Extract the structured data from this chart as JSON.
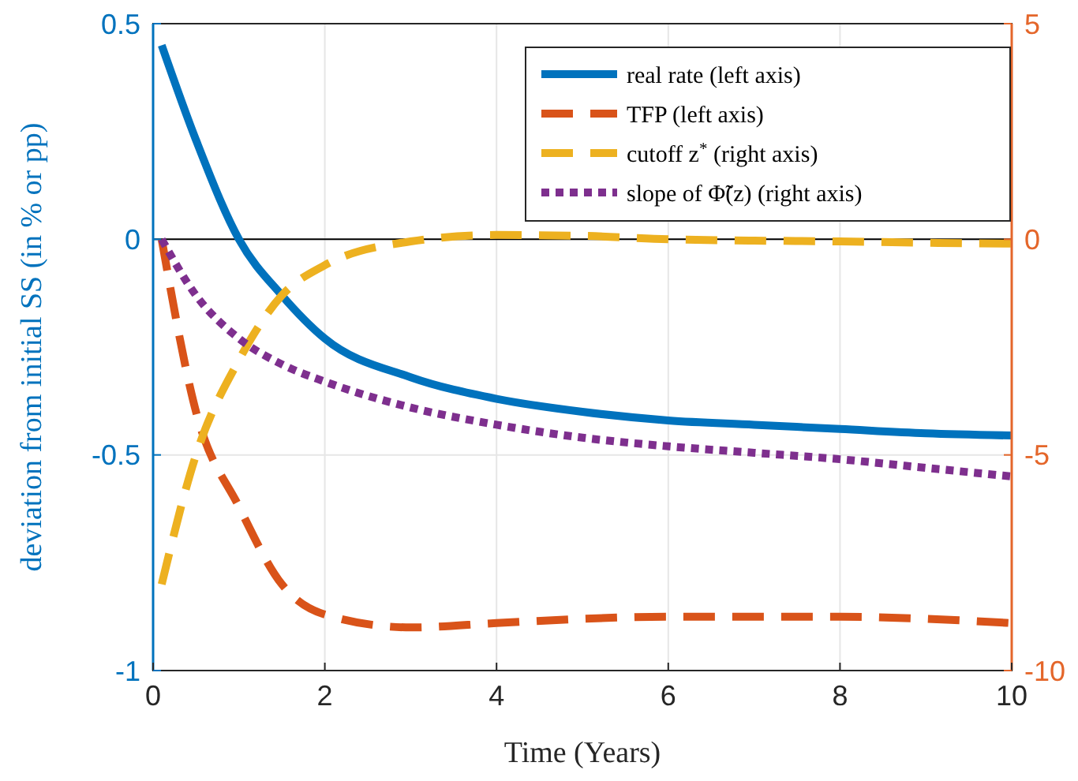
{
  "chart_data": {
    "type": "line",
    "xlabel": "Time (Years)",
    "ylabel": "deviation from initial SS (in % or pp)",
    "xlim": [
      0,
      10
    ],
    "xticks": [
      0,
      2,
      4,
      6,
      8,
      10
    ],
    "ylim": [
      -1,
      0.5
    ],
    "yticks": [
      -1,
      -0.5,
      0,
      0.5
    ],
    "y2lim": [
      -10,
      5
    ],
    "y2ticks": [
      -10,
      -5,
      0,
      5
    ],
    "grid": true,
    "legend": "top right",
    "ref_lines": [
      {
        "axis": "y",
        "value": 0,
        "color": "#000000"
      }
    ],
    "x": [
      0.1,
      0.5,
      1,
      1.5,
      2,
      3,
      4,
      5,
      6,
      7,
      8,
      9,
      10
    ],
    "series": [
      {
        "name": "real rate (left axis)",
        "color": "#0072bd",
        "line_style": "solid",
        "values": [
          0.45,
          0.23,
          0.0,
          -0.13,
          -0.23,
          -0.32,
          -0.37,
          -0.4,
          -0.42,
          -0.43,
          -0.44,
          -0.45,
          -0.455
        ]
      },
      {
        "name": "TFP (left axis)",
        "color": "#d95319",
        "line_style": "dashed",
        "values": [
          0,
          -0.4,
          -0.62,
          -0.8,
          -0.87,
          -0.9,
          -0.89,
          -0.88,
          -0.875,
          -0.875,
          -0.875,
          -0.88,
          -0.89
        ]
      },
      {
        "name": "cutoff z$^{*}$ (right axis)",
        "color": "#edb120",
        "line_style": "dashed",
        "axis": "y2",
        "values": [
          -8,
          -5,
          -2.8,
          -1.3,
          -0.6,
          -0.05,
          0.1,
          0.08,
          0,
          -0.03,
          -0.05,
          -0.08,
          -0.1
        ]
      },
      {
        "name": "slope of Φ̃(z) (right axis)",
        "color": "#7e2f8e",
        "line_style": "dotted",
        "axis": "y2",
        "values": [
          0,
          -1.3,
          -2.3,
          -2.9,
          -3.3,
          -3.9,
          -4.3,
          -4.6,
          -4.8,
          -4.95,
          -5.1,
          -5.3,
          -5.5
        ]
      }
    ]
  }
}
